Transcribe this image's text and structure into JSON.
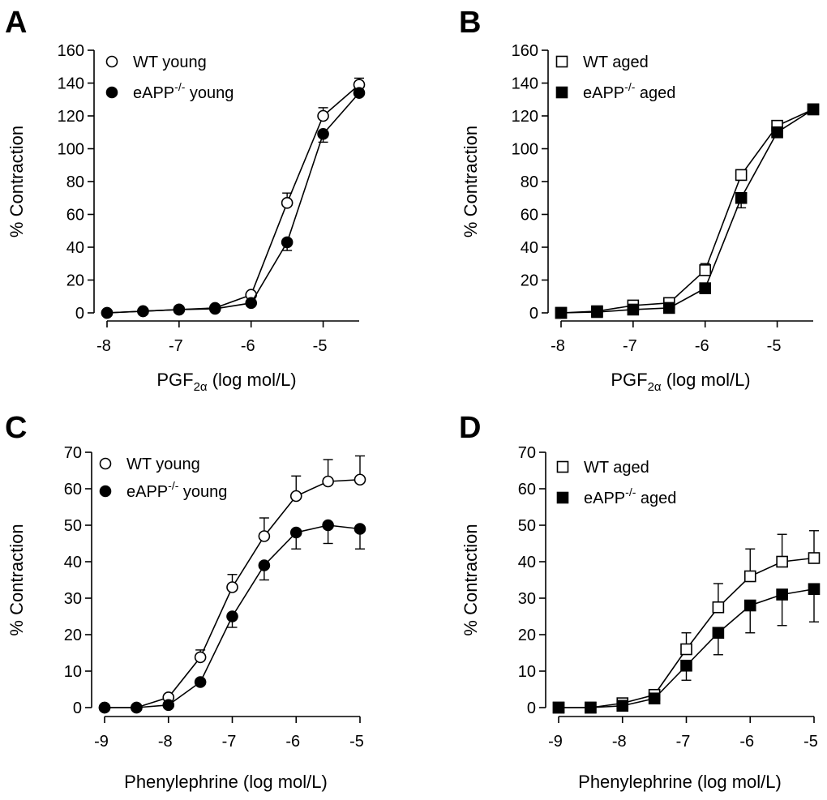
{
  "chart_data": [
    {
      "panel": "A",
      "type": "line",
      "xlabel": {
        "main": "PGF",
        "sub": "2α",
        "rest": " (log mol/L)"
      },
      "ylabel": "% Contraction",
      "xlim": [
        -8,
        -4.5
      ],
      "ylim": [
        0,
        160
      ],
      "xticks": [
        -8,
        -7,
        -6,
        -5
      ],
      "xtick_labels": [
        "-8",
        "-7",
        "-6",
        "-5"
      ],
      "yticks": [
        0,
        20,
        40,
        60,
        80,
        100,
        120,
        140,
        160
      ],
      "ytick_labels": [
        "0",
        "20",
        "40",
        "60",
        "80",
        "100",
        "120",
        "140",
        "160"
      ],
      "series": [
        {
          "name": "WT young",
          "label_main": "WT young",
          "label_sup": "",
          "label_rest": "",
          "marker": "circle",
          "filled": false,
          "x": [
            -8,
            -7.5,
            -7,
            -6.5,
            -6,
            -5.5,
            -5,
            -4.5
          ],
          "y": [
            0,
            1,
            2,
            3,
            11,
            67,
            120,
            139
          ],
          "err": [
            0,
            0,
            0,
            0,
            1.5,
            6,
            5,
            4
          ]
        },
        {
          "name": "eAPP-/- young",
          "label_main": "eAPP",
          "label_sup": "-/-",
          "label_rest": " young",
          "marker": "circle",
          "filled": true,
          "x": [
            -8,
            -7.5,
            -7,
            -6.5,
            -6,
            -5.5,
            -5,
            -4.5
          ],
          "y": [
            0,
            1,
            2,
            2.5,
            6,
            43,
            109,
            134
          ],
          "err": [
            0,
            0,
            0,
            0,
            0,
            5,
            5,
            0
          ]
        }
      ]
    },
    {
      "panel": "B",
      "type": "line",
      "xlabel": {
        "main": "PGF",
        "sub": "2α",
        "rest": " (log mol/L)"
      },
      "ylabel": "% Contraction",
      "xlim": [
        -8,
        -4.5
      ],
      "ylim": [
        0,
        160
      ],
      "xticks": [
        -8,
        -7,
        -6,
        -5
      ],
      "xtick_labels": [
        "-8",
        "-7",
        "-6",
        "-5"
      ],
      "yticks": [
        0,
        20,
        40,
        60,
        80,
        100,
        120,
        140,
        160
      ],
      "ytick_labels": [
        "0",
        "20",
        "40",
        "60",
        "80",
        "100",
        "120",
        "140",
        "160"
      ],
      "series": [
        {
          "name": "WT aged",
          "label_main": "WT aged",
          "label_sup": "",
          "label_rest": "",
          "marker": "square",
          "filled": false,
          "x": [
            -8,
            -7.5,
            -7,
            -6.5,
            -6,
            -5.5,
            -5,
            -4.5
          ],
          "y": [
            0,
            1,
            4.5,
            6,
            26,
            84,
            114,
            124
          ],
          "err": [
            0,
            0,
            0,
            0,
            4,
            3,
            3,
            3
          ]
        },
        {
          "name": "eAPP-/- aged",
          "label_main": "eAPP",
          "label_sup": "-/-",
          "label_rest": " aged",
          "marker": "square",
          "filled": true,
          "x": [
            -8,
            -7.5,
            -7,
            -6.5,
            -6,
            -5.5,
            -5,
            -4.5
          ],
          "y": [
            0,
            0.5,
            2,
            3,
            15,
            70,
            110,
            124
          ],
          "err": [
            0,
            0,
            0,
            0,
            0,
            6,
            3,
            0
          ]
        }
      ]
    },
    {
      "panel": "C",
      "type": "line",
      "xlabel": {
        "main": "Phenylephrine (log mol/L)",
        "sub": "",
        "rest": ""
      },
      "ylabel": "% Contraction",
      "xlim": [
        -9,
        -5
      ],
      "ylim": [
        0,
        70
      ],
      "xticks": [
        -9,
        -8,
        -7,
        -6,
        -5
      ],
      "xtick_labels": [
        "-9",
        "-8",
        "-7",
        "-6",
        "-5"
      ],
      "yticks": [
        0,
        10,
        20,
        30,
        40,
        50,
        60,
        70
      ],
      "ytick_labels": [
        "0",
        "10",
        "20",
        "30",
        "40",
        "50",
        "60",
        "70"
      ],
      "series": [
        {
          "name": "WT young",
          "label_main": "WT young",
          "label_sup": "",
          "label_rest": "",
          "marker": "circle",
          "filled": false,
          "x": [
            -9,
            -8.5,
            -8,
            -7.5,
            -7,
            -6.5,
            -6,
            -5.5,
            -5
          ],
          "y": [
            0,
            0,
            2.8,
            13.8,
            33,
            47,
            58,
            62,
            62.5
          ],
          "err": [
            0,
            0,
            0,
            2,
            3.5,
            5,
            5.5,
            6,
            6.5
          ]
        },
        {
          "name": "eAPP-/- young",
          "label_main": "eAPP",
          "label_sup": "-/-",
          "label_rest": " young",
          "marker": "circle",
          "filled": true,
          "x": [
            -9,
            -8.5,
            -8,
            -7.5,
            -7,
            -6.5,
            -6,
            -5.5,
            -5
          ],
          "y": [
            0,
            0,
            0.7,
            7,
            25,
            39,
            48,
            50,
            49
          ],
          "err": [
            0,
            0,
            0,
            0,
            3,
            4,
            4.5,
            5,
            5.5
          ]
        }
      ]
    },
    {
      "panel": "D",
      "type": "line",
      "xlabel": {
        "main": "Phenylephrine (log mol/L)",
        "sub": "",
        "rest": ""
      },
      "ylabel": "% Contraction",
      "xlim": [
        -9,
        -5
      ],
      "ylim": [
        0,
        70
      ],
      "xticks": [
        -9,
        -8,
        -7,
        -6,
        -5
      ],
      "xtick_labels": [
        "-9",
        "-8",
        "-7",
        "-6",
        "-5"
      ],
      "yticks": [
        0,
        10,
        20,
        30,
        40,
        50,
        60,
        70
      ],
      "ytick_labels": [
        "0",
        "10",
        "20",
        "30",
        "40",
        "50",
        "60",
        "70"
      ],
      "series": [
        {
          "name": "WT aged",
          "label_main": "WT aged",
          "label_sup": "",
          "label_rest": "",
          "marker": "square",
          "filled": false,
          "x": [
            -9,
            -8.5,
            -8,
            -7.5,
            -7,
            -6.5,
            -6,
            -5.5,
            -5
          ],
          "y": [
            0,
            0,
            1.2,
            3.5,
            16,
            27.5,
            36,
            40,
            41
          ],
          "err": [
            0,
            0,
            0,
            0,
            4.5,
            6.5,
            7.5,
            7.5,
            7.5
          ]
        },
        {
          "name": "eAPP-/- aged",
          "label_main": "eAPP",
          "label_sup": "-/-",
          "label_rest": " aged",
          "marker": "square",
          "filled": true,
          "x": [
            -9,
            -8.5,
            -8,
            -7.5,
            -7,
            -6.5,
            -6,
            -5.5,
            -5
          ],
          "y": [
            0,
            0,
            0.5,
            2.5,
            11.5,
            20.5,
            28,
            31,
            32.5
          ],
          "err": [
            0,
            0,
            0,
            0,
            4,
            6,
            7.5,
            8.5,
            9
          ]
        }
      ]
    }
  ]
}
